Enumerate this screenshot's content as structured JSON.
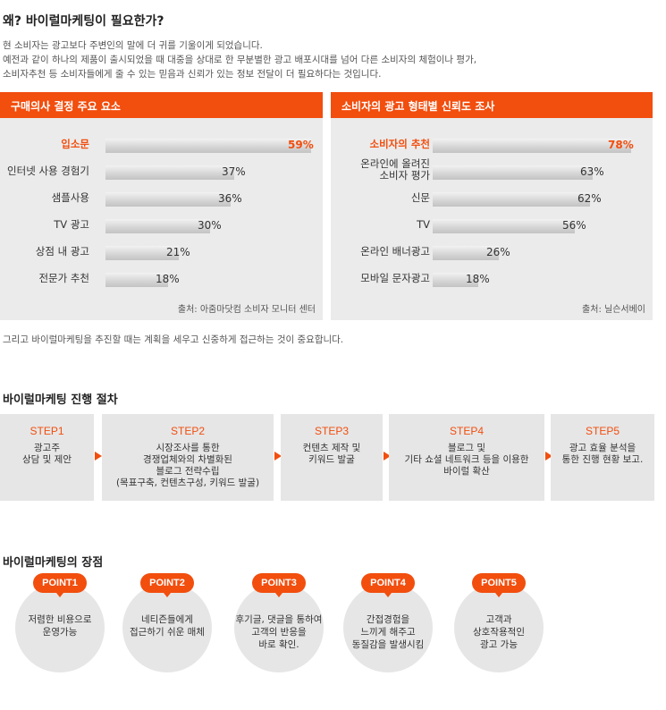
{
  "page": {
    "title": "왜? 바이럴마케팅이 필요한가?",
    "intro": [
      "현 소비자는 광고보다 주변인의 말에 더 귀를 기울이게 되었습니다.",
      "예전과 같이 하나의 제품이 출시되었을 때 대중을 상대로 한 무분별한 광고 배포시대를 넘어 다른 소비자의 체험이나 평가,",
      "소비자추천 등 소비자들에게 줄 수 있는 믿음과 신뢰가 있는 정보 전달이 더 필요하다는 것입니다."
    ],
    "note": "그리고 바이럴마케팅을 추진할 때는 계획을 세우고 신중하게 접근하는 것이 중요합니다."
  },
  "colors": {
    "accent": "#f24e0e",
    "panel_bg": "#ebebeb",
    "bar": "#cfcfcf"
  },
  "chart_data": [
    {
      "type": "bar",
      "title": "구매의사 결정 주요 요소",
      "categories": [
        "입소문",
        "인터넷 사용 경험기",
        "샘플사용",
        "TV 광고",
        "상점 내 광고",
        "전문가 추천"
      ],
      "values": [
        59,
        37,
        36,
        30,
        21,
        18
      ],
      "value_labels": [
        "59%",
        "37%",
        "36%",
        "30%",
        "21%",
        "18%"
      ],
      "highlight": 0,
      "source": "출처: 아줌마닷컴 소비자 모니터 센터"
    },
    {
      "type": "bar",
      "title": "소비자의 광고 형태별 신뢰도 조사",
      "categories": [
        "소비자의 추천",
        "온라인에 올려진\n소비자 평가",
        "신문",
        "TV",
        "온라인 배너광고",
        "모바일 문자광고"
      ],
      "values": [
        78,
        63,
        62,
        56,
        26,
        18
      ],
      "value_labels": [
        "78%",
        "63%",
        "62%",
        "56%",
        "26%",
        "18%"
      ],
      "highlight": 0,
      "source": "출처: 닐슨서베이"
    }
  ],
  "steps": {
    "heading": "바이럴마케팅 진행 절차",
    "items": [
      {
        "num": "STEP1",
        "text": "광고주\n상담 및 제안"
      },
      {
        "num": "STEP2",
        "text": "시장조사를 통한\n경쟁업체와의 차별화된\n블로그 전략수립\n(목표구축, 컨텐츠구성, 키워드 발굴)"
      },
      {
        "num": "STEP3",
        "text": "컨텐츠 제작 및\n키워드 발굴"
      },
      {
        "num": "STEP4",
        "text": "블로그 및\n기타 쇼셜 네트워크 등을 이용한\n바이럴 확산"
      },
      {
        "num": "STEP5",
        "text": "광고 효율 분석을\n통한 진행 현황 보고."
      }
    ]
  },
  "points": {
    "heading": "바이럴마케팅의 장점",
    "items": [
      {
        "badge": "POINT1",
        "text": "저렴한 비용으로\n운영가능"
      },
      {
        "badge": "POINT2",
        "text": "네티즌들에게\n접근하기 쉬운 매체"
      },
      {
        "badge": "POINT3",
        "text": "후기글, 댓글을 통하여\n고객의 반응을\n바로 확인."
      },
      {
        "badge": "POINT4",
        "text": "간접경험을\n느끼게 해주고\n동질감을 발생시킴"
      },
      {
        "badge": "POINT5",
        "text": "고객과\n상호작용적인\n광고 가능"
      }
    ]
  }
}
